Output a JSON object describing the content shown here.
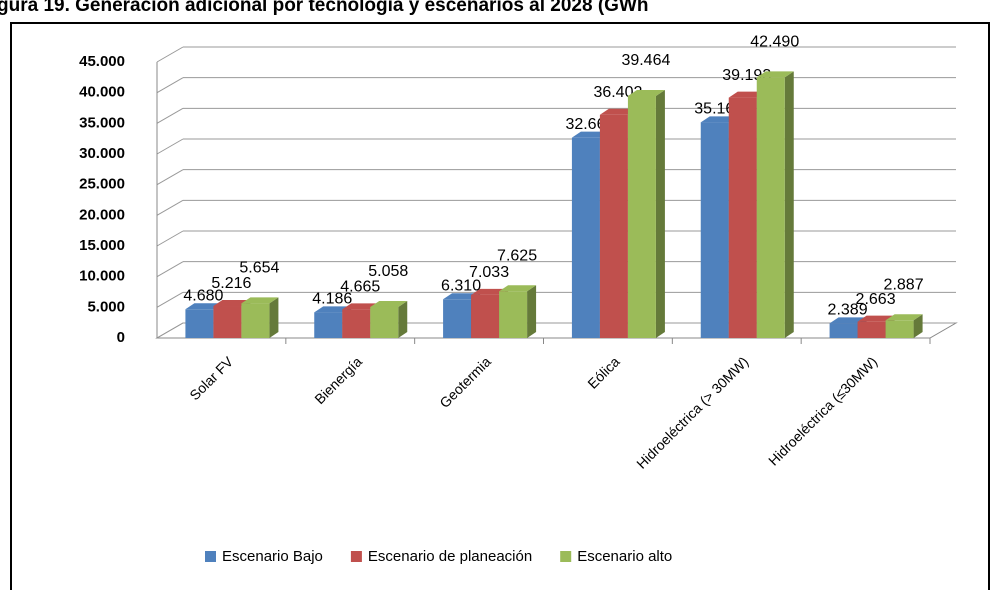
{
  "chart_data": {
    "type": "bar3d",
    "title": "gura 19. Generación adicional por tecnología y escenarios al 2028 (GWh",
    "categories": [
      "Solar FV",
      "Bienergía",
      "Geotermia",
      "Eólica",
      "Hidroeléctrica (> 30MW)",
      "Hidroeléctrica (≤30MW)"
    ],
    "series": [
      {
        "name": "Escenario Bajo",
        "color": "#4f81bd",
        "values": [
          4680,
          4186,
          6310,
          32662,
          35166,
          2389
        ],
        "value_labels": [
          "4.680",
          "4.186",
          "6.310",
          "32.662",
          "35.166",
          "2.389"
        ]
      },
      {
        "name": "Escenario de planeación",
        "color": "#c0504d",
        "values": [
          5216,
          4665,
          7033,
          36402,
          39193,
          2663
        ],
        "value_labels": [
          "5.216",
          "4.665",
          "7.033",
          "36.402",
          "39.193",
          "2.663"
        ]
      },
      {
        "name": "Escenario alto",
        "color": "#9bbb59",
        "values": [
          5654,
          5058,
          7625,
          39464,
          42490,
          2887
        ],
        "value_labels": [
          "5.654",
          "5.058",
          "7.625",
          "39.464",
          "42.490",
          "2.887"
        ]
      }
    ],
    "ylim": [
      0,
      45000
    ],
    "yticks": [
      0,
      {
        "value": 5000,
        "label": "5.000"
      },
      {
        "value": 10000,
        "label": "10.000"
      },
      {
        "value": 15000,
        "label": "15.000"
      },
      {
        "value": 20000,
        "label": "20.000"
      },
      {
        "value": 25000,
        "label": "25.000"
      },
      {
        "value": 30000,
        "label": "30.000"
      },
      {
        "value": 35000,
        "label": "35.000"
      },
      {
        "value": 40000,
        "label": "40.000"
      },
      {
        "value": 45000,
        "label": "45.000"
      }
    ],
    "grid": true,
    "legend": "bottom"
  }
}
